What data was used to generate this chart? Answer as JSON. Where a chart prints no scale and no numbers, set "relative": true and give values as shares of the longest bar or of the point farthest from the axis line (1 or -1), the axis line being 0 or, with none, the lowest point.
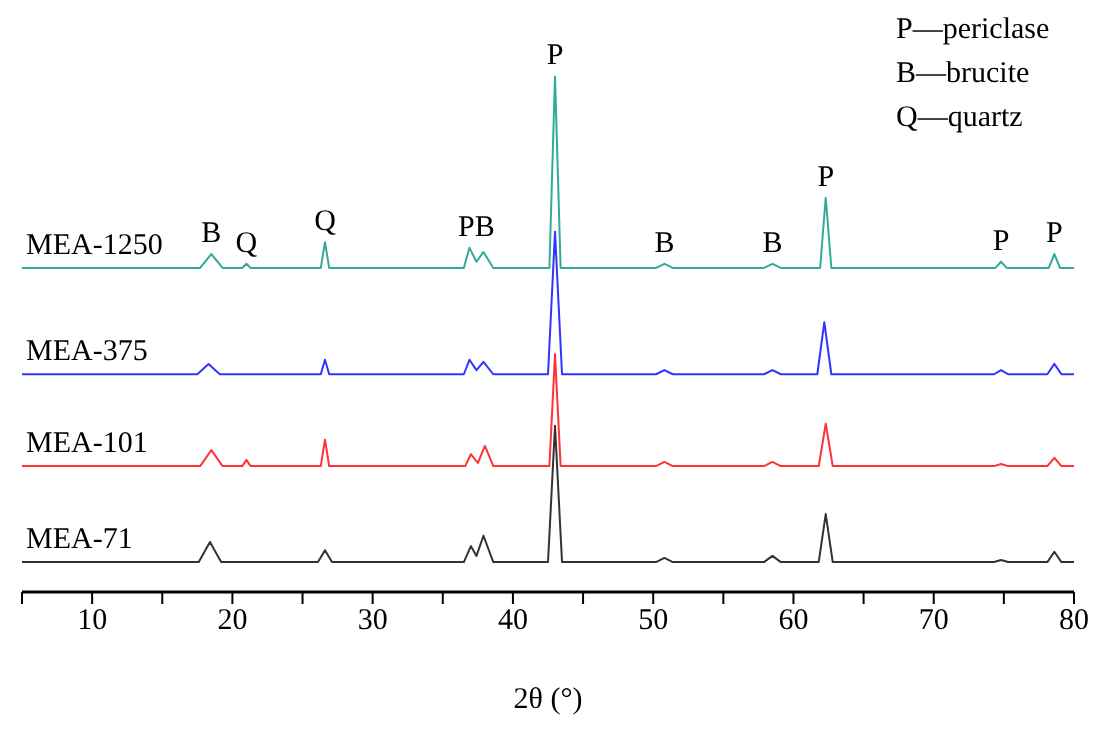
{
  "chart_data": {
    "type": "line",
    "relative": true,
    "xlabel": "2θ (°)",
    "xlim": [
      5,
      80
    ],
    "xticks": [
      {
        "value": 5,
        "label": null
      },
      10,
      {
        "value": 15,
        "label": null
      },
      20,
      {
        "value": 25,
        "label": null
      },
      30,
      {
        "value": 35,
        "label": null
      },
      40,
      {
        "value": 45,
        "label": null
      },
      50,
      {
        "value": 55,
        "label": null
      },
      60,
      {
        "value": 65,
        "label": null
      },
      70,
      {
        "value": 75,
        "label": null
      },
      80
    ],
    "marker": "none",
    "line_style": "solid",
    "tick_labels": "x",
    "series": [
      {
        "name": "MEA-71",
        "color": "#333333",
        "x": [
          5,
          17.6,
          18.4,
          19.2,
          26.1,
          26.6,
          27.1,
          36.5,
          37,
          37.4,
          37.9,
          38.6,
          42.5,
          43,
          43.5,
          50.2,
          50.8,
          51.4,
          57.9,
          58.5,
          59.1,
          61.8,
          62.3,
          62.8,
          74.3,
          74.8,
          75.3,
          78.1,
          78.6,
          79.1,
          80
        ],
        "values": [
          0.058,
          0.058,
          0.097,
          0.058,
          0.058,
          0.081,
          0.058,
          0.058,
          0.089,
          0.07,
          0.109,
          0.058,
          0.058,
          0.322,
          0.058,
          0.058,
          0.066,
          0.058,
          0.058,
          0.07,
          0.058,
          0.058,
          0.151,
          0.058,
          0.058,
          0.062,
          0.058,
          0.058,
          0.078,
          0.058,
          0.058
        ]
      },
      {
        "name": "MEA-101",
        "color": "#ff3333",
        "x": [
          5,
          17.7,
          18.5,
          19.3,
          20.7,
          21,
          21.3,
          26.3,
          26.6,
          26.9,
          36.6,
          37,
          37.5,
          38,
          38.6,
          42.6,
          43,
          43.4,
          50.2,
          50.8,
          51.4,
          57.9,
          58.5,
          59.1,
          61.8,
          62.3,
          62.8,
          74.3,
          74.8,
          75.3,
          78.1,
          78.6,
          79.1,
          80
        ],
        "values": [
          0.244,
          0.244,
          0.275,
          0.244,
          0.244,
          0.256,
          0.244,
          0.244,
          0.295,
          0.244,
          0.244,
          0.267,
          0.25,
          0.283,
          0.244,
          0.244,
          0.461,
          0.244,
          0.244,
          0.252,
          0.244,
          0.244,
          0.252,
          0.244,
          0.244,
          0.326,
          0.244,
          0.244,
          0.248,
          0.244,
          0.244,
          0.26,
          0.244,
          0.244
        ]
      },
      {
        "name": "MEA-375",
        "color": "#3333ff",
        "x": [
          5,
          17.5,
          18.3,
          19.1,
          26.3,
          26.6,
          26.9,
          36.5,
          36.9,
          37.4,
          37.9,
          38.6,
          42.5,
          43,
          43.5,
          50.2,
          50.8,
          51.4,
          57.9,
          58.5,
          59.1,
          61.7,
          62.2,
          62.7,
          74.3,
          74.8,
          75.3,
          78.1,
          78.6,
          79.1,
          80
        ],
        "values": [
          0.422,
          0.422,
          0.442,
          0.422,
          0.422,
          0.45,
          0.422,
          0.422,
          0.45,
          0.43,
          0.446,
          0.422,
          0.422,
          0.698,
          0.422,
          0.422,
          0.43,
          0.422,
          0.422,
          0.43,
          0.422,
          0.422,
          0.523,
          0.422,
          0.422,
          0.43,
          0.422,
          0.422,
          0.442,
          0.422,
          0.422
        ]
      },
      {
        "name": "MEA-1250",
        "color": "#33aa99",
        "x": [
          5,
          17.7,
          18.5,
          19.3,
          20.7,
          21,
          21.3,
          26.3,
          26.6,
          26.9,
          36.5,
          36.9,
          37.4,
          37.9,
          38.6,
          42.6,
          43,
          43.4,
          50.2,
          50.8,
          51.4,
          57.9,
          58.5,
          59.1,
          61.9,
          62.3,
          62.7,
          74.4,
          74.8,
          75.2,
          78.2,
          78.6,
          79,
          80
        ],
        "values": [
          0.628,
          0.628,
          0.655,
          0.628,
          0.628,
          0.636,
          0.628,
          0.628,
          0.678,
          0.628,
          0.628,
          0.667,
          0.64,
          0.659,
          0.628,
          0.628,
          1.0,
          0.628,
          0.628,
          0.636,
          0.628,
          0.628,
          0.636,
          0.628,
          0.628,
          0.764,
          0.628,
          0.628,
          0.64,
          0.628,
          0.628,
          0.655,
          0.628,
          0.628
        ]
      }
    ],
    "annotations": [
      {
        "text": "B",
        "x": 18.5,
        "y": 0.655
      },
      {
        "text": "Q",
        "x": 21,
        "y": 0.636
      },
      {
        "text": "Q",
        "x": 26.6,
        "y": 0.678
      },
      {
        "text": "PB",
        "x": 37.4,
        "y": 0.667
      },
      {
        "text": "P",
        "x": 43,
        "y": 1.0
      },
      {
        "text": "B",
        "x": 50.8,
        "y": 0.636
      },
      {
        "text": "B",
        "x": 58.5,
        "y": 0.636
      },
      {
        "text": "P",
        "x": 62.3,
        "y": 0.764
      },
      {
        "text": "P",
        "x": 74.8,
        "y": 0.64
      },
      {
        "text": "P",
        "x": 78.6,
        "y": 0.655
      },
      "P—periclase",
      "B—brucite",
      "Q—quartz"
    ]
  }
}
